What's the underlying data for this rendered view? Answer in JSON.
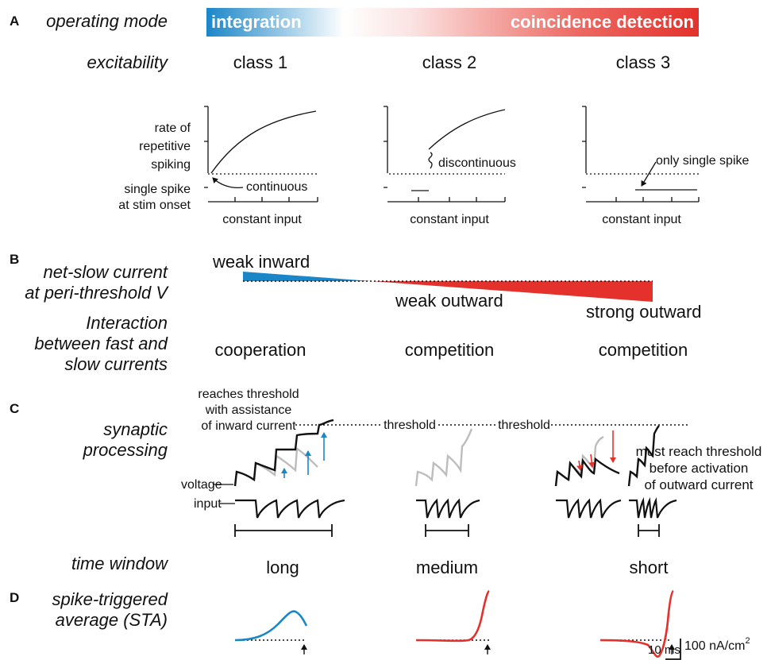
{
  "panels": {
    "a": "A",
    "b": "B",
    "c": "C",
    "d": "D"
  },
  "row_labels": {
    "operating_mode": "operating mode",
    "excitability": "excitability",
    "net_slow_1": "net-slow current",
    "net_slow_2": "at peri-threshold V",
    "interaction_1": "Interaction",
    "interaction_2": "between fast and",
    "interaction_3": "slow currents",
    "synaptic_1": "synaptic",
    "synaptic_2": "processing",
    "time_window": "time window",
    "sta_1": "spike-triggered",
    "sta_2": "average (STA)"
  },
  "operating_mode": {
    "left": "integration",
    "right": "coincidence detection",
    "left_color": "#1a86c8",
    "right_color": "#e4312b"
  },
  "excitability": {
    "classes": [
      "class 1",
      "class 2",
      "class 3"
    ],
    "y_label": [
      "rate of",
      "repetitive",
      "spiking"
    ],
    "y_label_bottom": [
      "single spike",
      "at stim onset"
    ],
    "x_label": "constant input",
    "annotations": {
      "continuous": "continuous",
      "discontinuous": "discontinuous",
      "only_single": "only single spike"
    }
  },
  "net_slow": {
    "weak_inward": "weak inward",
    "weak_outward": "weak outward",
    "strong_outward": "strong outward",
    "inward_color": "#1a86c8",
    "outward_color": "#e4312b"
  },
  "interaction": [
    "cooperation",
    "competition",
    "competition"
  ],
  "synaptic": {
    "reaches_1": "reaches threshold",
    "reaches_2": "with assistance",
    "reaches_3": "of inward current",
    "threshold_1": "threshold",
    "threshold_2": "threshold",
    "voltage": "voltage",
    "input": "input",
    "must_1": "must reach threshold",
    "must_2": "before activation",
    "must_3": "of outward current"
  },
  "time_window": [
    "long",
    "medium",
    "short"
  ],
  "sta": {
    "scale_y": "100 nA/cm",
    "scale_y_sup": "2",
    "scale_x": "10 ms",
    "class1_color": "#1a86c8",
    "class23_color": "#e4312b"
  }
}
